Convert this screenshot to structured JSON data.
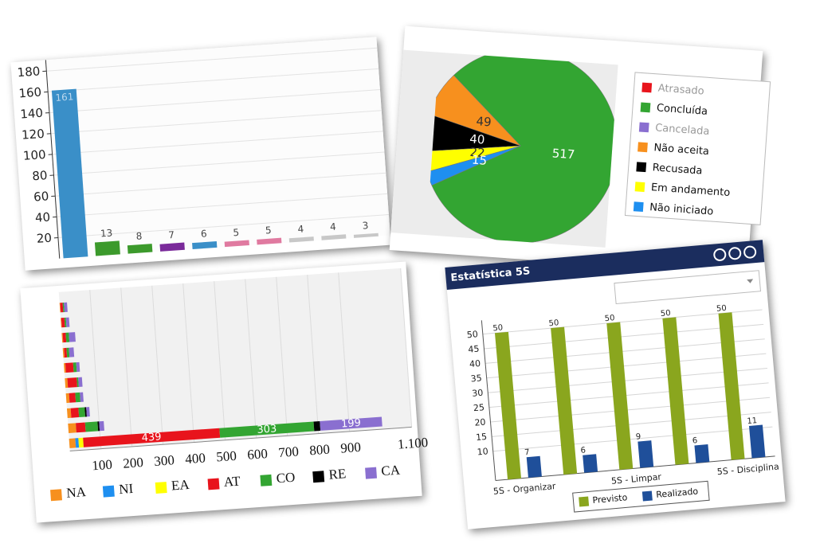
{
  "chart_data": [
    {
      "type": "bar",
      "values": [
        161,
        13,
        8,
        7,
        6,
        5,
        5,
        4,
        4,
        3
      ],
      "colors": [
        "#3a8fc8",
        "#3c9a2c",
        "#3c9a2c",
        "#7a2a9a",
        "#3a8fc8",
        "#e07aa0",
        "#e07aa0",
        "#c8c8c8",
        "#c8c8c8",
        "#c8c8c8"
      ],
      "ylim": [
        0,
        180
      ],
      "yticks": [
        20,
        40,
        60,
        80,
        100,
        120,
        140,
        160,
        180
      ],
      "grid": true
    },
    {
      "type": "pie",
      "labels": [
        "Atrasado",
        "Concluída",
        "Cancelada",
        "Não aceita",
        "Recusada",
        "Em andamento",
        "Não iniciado"
      ],
      "values": [
        0,
        517,
        0,
        49,
        40,
        22,
        15
      ],
      "colors": [
        "#e8141c",
        "#33a532",
        "#8a6fd0",
        "#f7901e",
        "#000000",
        "#ffff00",
        "#1e8ff0"
      ],
      "legend": "right"
    },
    {
      "type": "stacked-barh",
      "categories": [
        null,
        null,
        null,
        null,
        null,
        null,
        null,
        null,
        null,
        null
      ],
      "series": [
        {
          "name": "NA",
          "color": "#f7901e",
          "values": [
            20,
            25,
            12,
            10,
            8,
            5,
            4,
            3,
            2,
            2
          ]
        },
        {
          "name": "NI",
          "color": "#1e8ff0",
          "values": [
            10,
            0,
            0,
            0,
            0,
            0,
            0,
            0,
            0,
            0
          ]
        },
        {
          "name": "EA",
          "color": "#ffff00",
          "values": [
            15,
            0,
            0,
            0,
            0,
            0,
            0,
            0,
            0,
            0
          ]
        },
        {
          "name": "AT",
          "color": "#e8141c",
          "values": [
            439,
            30,
            25,
            20,
            30,
            25,
            8,
            10,
            10,
            8
          ]
        },
        {
          "name": "CO",
          "color": "#33a532",
          "values": [
            303,
            40,
            20,
            15,
            5,
            10,
            8,
            10,
            5,
            4
          ]
        },
        {
          "name": "RE",
          "color": "#000000",
          "values": [
            20,
            5,
            5,
            0,
            0,
            0,
            0,
            0,
            0,
            0
          ]
        },
        {
          "name": "CA",
          "color": "#8a6fd0",
          "values": [
            199,
            15,
            10,
            10,
            12,
            10,
            15,
            20,
            10,
            10
          ]
        }
      ],
      "xlim": [
        0,
        1100
      ],
      "xticks": [
        100,
        200,
        300,
        400,
        500,
        600,
        700,
        800,
        900,
        {
          "value": 1100,
          "label": "1.100"
        }
      ],
      "grid": true,
      "legend": "bottom"
    },
    {
      "type": "grouped-bar",
      "title": "Estatística 5S",
      "categories": [
        "5S - Organizar",
        null,
        "5S - Limpar",
        null,
        "5S - Disciplina"
      ],
      "series": [
        {
          "name": "Previsto",
          "color": "#8aa61e",
          "values": [
            50,
            50,
            50,
            50,
            50
          ]
        },
        {
          "name": "Realizado",
          "color": "#1f4f9a",
          "values": [
            7,
            6,
            9,
            6,
            11
          ]
        }
      ],
      "ylim": [
        0,
        52
      ],
      "yticks": [
        10,
        15,
        20,
        25,
        30,
        35,
        40,
        45,
        50
      ],
      "grid": true,
      "legend": "bottom"
    }
  ]
}
